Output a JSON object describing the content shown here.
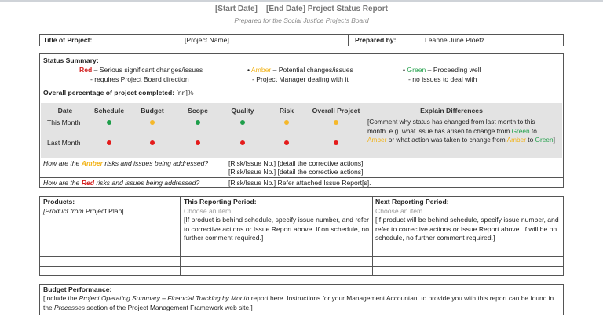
{
  "header": {
    "title": "[Start Date] – [End Date] Project Status Report",
    "subtitle": "Prepared for the Social Justice Projects Board"
  },
  "project": {
    "title_label": "Title of Project:",
    "title_value": "[Project Name]",
    "prepared_label": "Prepared by:",
    "prepared_value": "Leanne June Ploetz"
  },
  "status": {
    "heading": "Status Summary:",
    "red": {
      "word": "Red",
      "desc": " – Serious significant changes/issues",
      "sub": "- requires Project Board direction"
    },
    "amber": {
      "word": "Amber",
      "desc": " – Potential changes/issues",
      "sub": "- Project Manager dealing with it"
    },
    "green": {
      "word": "Green",
      "desc": " – Proceeding well",
      "sub": "- no issues to deal with"
    },
    "percent_label": "Overall percentage of project completed:",
    "percent_value": "[nn]%"
  },
  "colors": {
    "red": "#e41b1b",
    "amber": "#f5b82a",
    "green": "#1e9e4a"
  },
  "matrix": {
    "headers": [
      "Date",
      "Schedule",
      "Budget",
      "Scope",
      "Quality",
      "Risk",
      "Overall Project",
      "Explain Differences"
    ],
    "rows": [
      {
        "label": "This Month",
        "statuses": [
          "green",
          "amber",
          "green",
          "green",
          "amber",
          "amber"
        ]
      },
      {
        "label": "Last Month",
        "statuses": [
          "red",
          "red",
          "red",
          "red",
          "red",
          "red"
        ]
      }
    ],
    "explain": {
      "p1": "[Comment why status has changed from last month to this month.  e.g. what issue has arisen to change from ",
      "g1": "Green",
      "p2": " to ",
      "a1": "Amber",
      "p3": " or what action was taken to change from ",
      "a2": "Amber",
      "p4": " to ",
      "g2": "Green",
      "p5": "]"
    }
  },
  "risks": {
    "amber_q": {
      "pre": "How are the ",
      "word": "Amber",
      "post": " risks and issues being addressed?"
    },
    "amber_lines": [
      "[Risk/Issue No.]  [detail the corrective actions]",
      "[Risk/Issue No.]  [detail the corrective actions]"
    ],
    "red_q": {
      "pre": "How are the ",
      "word": "Red",
      "post": " risks and issues being addressed?"
    },
    "red_line": "[Risk/Issue No.]  Refer attached Issue Report[s]."
  },
  "products": {
    "headers": [
      "Products:",
      "This Reporting Period:",
      "Next Reporting Period:"
    ],
    "product_pre": "[Product from ",
    "product_post": "Project Plan]",
    "choose": "Choose an item.",
    "this_text": "[If product is behind schedule, specify issue number, and refer to corrective actions or Issue Report above.  If on schedule, no further comment required.]",
    "next_text": "[If product will be behind schedule, specify issue number, and refer to corrective actions or Issue Report above.  If will be on schedule, no further comment required.]"
  },
  "budget": {
    "heading": "Budget Performance:",
    "t1": "[Include the ",
    "i1": "Project Operating Summary – Financial Tracking by Month",
    "t2": " report here.  Instructions for your Management Accountant to provide you with this report can be found in the ",
    "i2": "Processes",
    "t3": " section of the Project Management Framework web site.]"
  }
}
